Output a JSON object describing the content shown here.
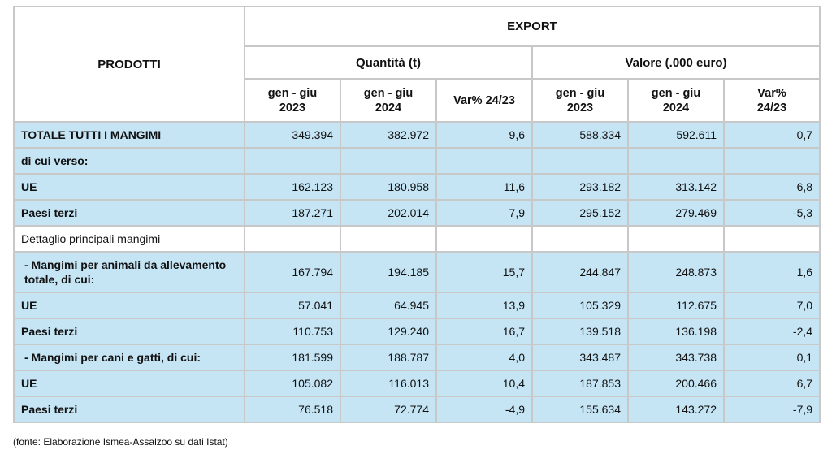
{
  "header": {
    "export": "EXPORT",
    "prodotti": "PRODOTTI",
    "quantita": "Quantità (t)",
    "valore": "Valore (.000 euro)",
    "sub": [
      [
        "gen - giu",
        "2023"
      ],
      [
        "gen - giu",
        "2024"
      ],
      [
        "Var% 24/23",
        ""
      ],
      [
        "gen - giu",
        "2023"
      ],
      [
        "gen - giu",
        "2024"
      ],
      [
        "Var%",
        "24/23"
      ]
    ]
  },
  "rows": [
    {
      "label": "TOTALE TUTTI I MANGIMI",
      "values": [
        "349.394",
        "382.972",
        "9,6",
        "588.334",
        "592.611",
        "0,7"
      ]
    },
    {
      "label": "di cui verso:",
      "values": [
        "",
        "",
        "",
        "",
        "",
        ""
      ]
    },
    {
      "label": "UE",
      "values": [
        "162.123",
        "180.958",
        "11,6",
        "293.182",
        "313.142",
        "6,8"
      ]
    },
    {
      "label": "Paesi terzi",
      "values": [
        "187.271",
        "202.014",
        "7,9",
        "295.152",
        "279.469",
        "-5,3"
      ]
    },
    {
      "label": "Dettaglio principali mangimi",
      "values": [
        "",
        "",
        "",
        "",
        "",
        ""
      ]
    },
    {
      "label": " - Mangimi per animali da allevamento totale, di cui:",
      "values": [
        "167.794",
        "194.185",
        "15,7",
        "244.847",
        "248.873",
        "1,6"
      ]
    },
    {
      "label": "UE",
      "values": [
        "57.041",
        "64.945",
        "13,9",
        "105.329",
        "112.675",
        "7,0"
      ]
    },
    {
      "label": "Paesi terzi",
      "values": [
        "110.753",
        "129.240",
        "16,7",
        "139.518",
        "136.198",
        "-2,4"
      ]
    },
    {
      "label": " - Mangimi per cani e gatti, di cui:",
      "values": [
        "181.599",
        "188.787",
        "4,0",
        "343.487",
        "343.738",
        "0,1"
      ]
    },
    {
      "label": "UE",
      "values": [
        "105.082",
        "116.013",
        "10,4",
        "187.853",
        "200.466",
        "6,7"
      ]
    },
    {
      "label": "Paesi terzi",
      "values": [
        "76.518",
        "72.774",
        "-4,9",
        "155.634",
        "143.272",
        "-7,9"
      ]
    }
  ],
  "footer": {
    "source": "(fonte: Elaborazione Ismea-Assalzoo su dati Istat)"
  }
}
